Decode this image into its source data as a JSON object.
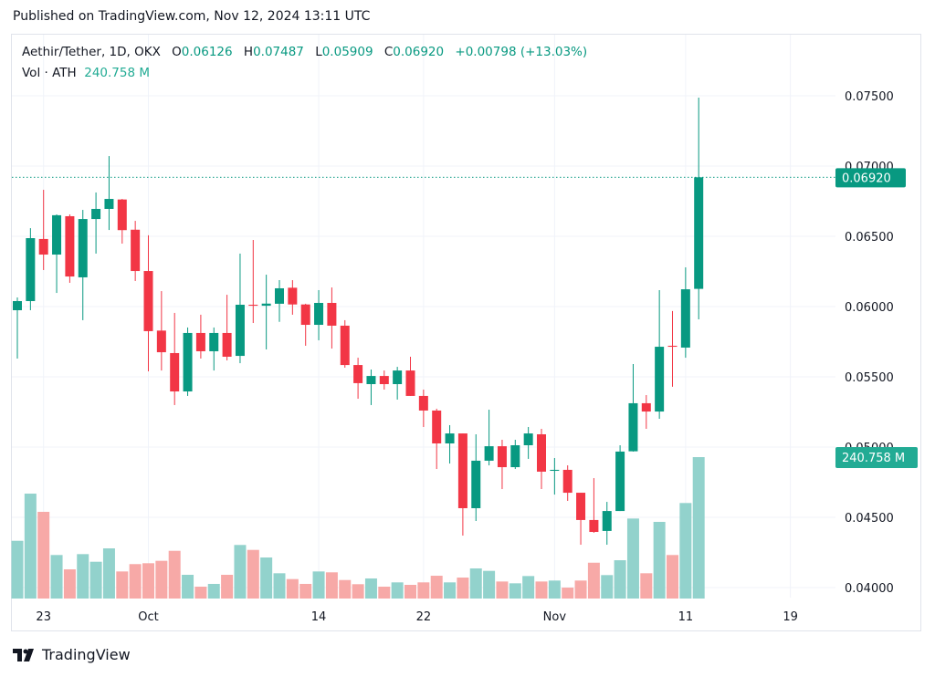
{
  "published": "Published on TradingView.com, Nov 12, 2024 13:11 UTC",
  "legend": {
    "symbol": "Aethir/Tether, 1D, OKX",
    "o_label": "O",
    "o": "0.06126",
    "h_label": "H",
    "h": "0.07487",
    "l_label": "L",
    "l": "0.05909",
    "c_label": "C",
    "c": "0.06920",
    "change": "+0.00798 (+13.03%)",
    "vol_label": "Vol · ATH",
    "vol_value": "240.758 M"
  },
  "colors": {
    "up": "#089981",
    "down": "#f23645",
    "up_volume": "#92d2cc",
    "down_volume": "#f7a9a7",
    "grid": "#f0f3fa",
    "last_price": "#089981",
    "volume_label": "#22ab94"
  },
  "footer": {
    "brand": "TradingView",
    "logo_icon": "tradingview-logo-icon"
  },
  "chart_data": {
    "type": "candlestick",
    "title": "Aethir/Tether, 1D, OKX",
    "interval": "1D",
    "ylim": [
      0.0395,
      0.0765
    ],
    "grid": true,
    "y_ticks": [
      "0.07500",
      "0.07000",
      "0.06500",
      "0.06000",
      "0.05500",
      "0.05000",
      "0.04500",
      "0.04000"
    ],
    "x_ticks": [
      {
        "label": "23",
        "date": "2024-09-23"
      },
      {
        "label": "Oct",
        "date": "2024-10-01"
      },
      {
        "label": "14",
        "date": "2024-10-14"
      },
      {
        "label": "22",
        "date": "2024-10-22"
      },
      {
        "label": "Nov",
        "date": "2024-11-01"
      },
      {
        "label": "11",
        "date": "2024-11-11"
      },
      {
        "label": "19",
        "date": "2024-11-19"
      }
    ],
    "last_price_label": "0.06920",
    "last_price": 0.0692,
    "volume_label": "240.758 M",
    "volume_unit": "M",
    "start_date": "2024-09-21",
    "ohlc": [
      [
        0.05974,
        0.06065,
        0.0563,
        0.06039
      ],
      [
        0.06039,
        0.06558,
        0.05974,
        0.06487
      ],
      [
        0.06481,
        0.06831,
        0.0626,
        0.0637
      ],
      [
        0.0637,
        0.06656,
        0.06097,
        0.0665
      ],
      [
        0.06643,
        0.06656,
        0.06169,
        0.06214
      ],
      [
        0.06208,
        0.06688,
        0.05903,
        0.06623
      ],
      [
        0.06623,
        0.06812,
        0.06377,
        0.06695
      ],
      [
        0.06695,
        0.07071,
        0.06545,
        0.06766
      ],
      [
        0.06762,
        0.06766,
        0.06448,
        0.06544
      ],
      [
        0.06547,
        0.0661,
        0.06182,
        0.06253
      ],
      [
        0.06253,
        0.06507,
        0.05539,
        0.05825
      ],
      [
        0.05829,
        0.0611,
        0.05545,
        0.05675
      ],
      [
        0.05669,
        0.05955,
        0.05299,
        0.05396
      ],
      [
        0.05396,
        0.05851,
        0.05364,
        0.05812
      ],
      [
        0.05812,
        0.05942,
        0.0563,
        0.05682
      ],
      [
        0.05682,
        0.05851,
        0.05545,
        0.05812
      ],
      [
        0.05812,
        0.06084,
        0.05617,
        0.05643
      ],
      [
        0.05649,
        0.06377,
        0.05597,
        0.06013
      ],
      [
        0.06013,
        0.06474,
        0.05883,
        0.06006
      ],
      [
        0.06006,
        0.06227,
        0.05695,
        0.06021
      ],
      [
        0.0602,
        0.06188,
        0.05891,
        0.0613
      ],
      [
        0.06134,
        0.06188,
        0.05942,
        0.06015
      ],
      [
        0.06015,
        0.0602,
        0.05721,
        0.0587
      ],
      [
        0.0587,
        0.06117,
        0.0576,
        0.06026
      ],
      [
        0.06026,
        0.06136,
        0.05701,
        0.05864
      ],
      [
        0.05864,
        0.05903,
        0.05565,
        0.05584
      ],
      [
        0.05584,
        0.05636,
        0.05344,
        0.05455
      ],
      [
        0.05448,
        0.05552,
        0.05299,
        0.05506
      ],
      [
        0.05506,
        0.05545,
        0.05409,
        0.05448
      ],
      [
        0.05448,
        0.05571,
        0.05338,
        0.05545
      ],
      [
        0.05545,
        0.05643,
        0.05364,
        0.05364
      ],
      [
        0.05364,
        0.05409,
        0.05143,
        0.0526
      ],
      [
        0.0526,
        0.05273,
        0.04844,
        0.05026
      ],
      [
        0.05026,
        0.05156,
        0.04883,
        0.05097
      ],
      [
        0.05097,
        0.05097,
        0.0437,
        0.04565
      ],
      [
        0.04565,
        0.05091,
        0.04474,
        0.04903
      ],
      [
        0.04903,
        0.05266,
        0.0487,
        0.05006
      ],
      [
        0.05006,
        0.05052,
        0.04701,
        0.04857
      ],
      [
        0.04857,
        0.05052,
        0.04844,
        0.05013
      ],
      [
        0.05013,
        0.05143,
        0.04916,
        0.05097
      ],
      [
        0.05091,
        0.0513,
        0.04701,
        0.04825
      ],
      [
        0.04831,
        0.04922,
        0.04662,
        0.04838
      ],
      [
        0.04838,
        0.0487,
        0.04617,
        0.04675
      ],
      [
        0.04675,
        0.04675,
        0.04305,
        0.04481
      ],
      [
        0.04481,
        0.04779,
        0.0439,
        0.04396
      ],
      [
        0.04403,
        0.0461,
        0.04305,
        0.04545
      ],
      [
        0.04545,
        0.05013,
        0.04545,
        0.04968
      ],
      [
        0.0497,
        0.05591,
        0.04968,
        0.05312
      ],
      [
        0.05312,
        0.0537,
        0.0513,
        0.05253
      ],
      [
        0.05253,
        0.06117,
        0.05201,
        0.05714
      ],
      [
        0.05721,
        0.05968,
        0.05429,
        0.05714
      ],
      [
        0.05708,
        0.06279,
        0.05636,
        0.06123
      ],
      [
        0.06126,
        0.07487,
        0.05909,
        0.0692
      ]
    ],
    "volume": [
      98.3,
      178.6,
      147.6,
      74.1,
      49.7,
      75.6,
      62.6,
      85.4,
      46.1,
      58.6,
      60.1,
      64.2,
      81.2,
      40.4,
      20.2,
      24.9,
      40.4,
      91.2,
      82.8,
      69.9,
      43,
      33.1,
      24.9,
      46.1,
      44.6,
      31.5,
      24.4,
      34.2,
      20.2,
      27.5,
      23.3,
      27.5,
      38.8,
      27.5,
      35.7,
      51.3,
      47.1,
      29,
      25.9,
      38.3,
      29,
      30.6,
      18.6,
      30.6,
      61,
      39.9,
      65.2,
      136.2,
      43,
      130.5,
      74.1,
      162.6,
      240.758
    ]
  }
}
